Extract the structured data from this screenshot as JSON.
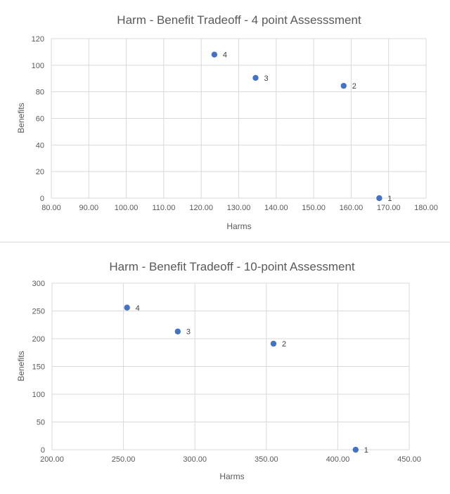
{
  "colors": {
    "marker": "#4472c4",
    "grid": "#d9d9d9",
    "text": "#595959"
  },
  "chart_data": [
    {
      "type": "scatter",
      "title": "Harm - Benefit Tradeoff  - 4 point Assesssment",
      "xlabel": "Harms",
      "ylabel": "Benefits",
      "xlim": [
        80,
        180
      ],
      "ylim": [
        0,
        120
      ],
      "x_ticks": [
        "80.00",
        "90.00",
        "100.00",
        "110.00",
        "120.00",
        "130.00",
        "140.00",
        "150.00",
        "160.00",
        "170.00",
        "180.00"
      ],
      "y_ticks": [
        "0",
        "20",
        "40",
        "60",
        "80",
        "100",
        "120"
      ],
      "grid": true,
      "points": [
        {
          "label": "1",
          "x": 167.5,
          "y": 0
        },
        {
          "label": "2",
          "x": 158,
          "y": 84.5
        },
        {
          "label": "3",
          "x": 134.5,
          "y": 90.5
        },
        {
          "label": "4",
          "x": 123.5,
          "y": 108
        }
      ]
    },
    {
      "type": "scatter",
      "title": "Harm - Benefit Tradeoff  - 10-point Assessment",
      "xlabel": "Harms",
      "ylabel": "Benefits",
      "xlim": [
        200,
        450
      ],
      "ylim": [
        0,
        300
      ],
      "x_ticks": [
        "200.00",
        "250.00",
        "300.00",
        "350.00",
        "400.00",
        "450.00"
      ],
      "y_ticks": [
        "0",
        "50",
        "100",
        "150",
        "200",
        "250",
        "300"
      ],
      "grid": true,
      "points": [
        {
          "label": "1",
          "x": 412.5,
          "y": 0
        },
        {
          "label": "2",
          "x": 355,
          "y": 191
        },
        {
          "label": "3",
          "x": 288,
          "y": 213
        },
        {
          "label": "4",
          "x": 252.5,
          "y": 256
        }
      ]
    }
  ]
}
